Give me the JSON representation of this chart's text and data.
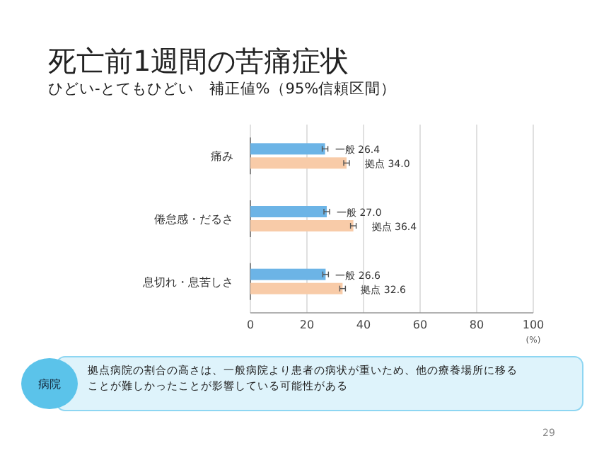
{
  "chart_data": {
    "type": "bar",
    "orientation": "horizontal",
    "title": "死亡前1週間の苦痛症状",
    "subtitle": "ひどい-とてもひどい　補正値%（95%信頼区間）",
    "categories": [
      "痛み",
      "倦怠感・だるさ",
      "息切れ・息苦しさ"
    ],
    "series": [
      {
        "color": "#6cb4e6",
        "values": [
          26.4,
          27.0,
          26.6
        ],
        "errors": [
          1.0,
          1.0,
          1.0
        ],
        "value_labels": [
          "一般 26.4",
          "一般 27.0",
          "一般 26.6"
        ]
      },
      {
        "color": "#f8cba8",
        "values": [
          34.0,
          36.4,
          32.6
        ],
        "errors": [
          1.0,
          1.0,
          1.0
        ],
        "value_labels": [
          "拠点 34.0",
          "拠点 36.4",
          "拠点 32.6"
        ]
      }
    ],
    "xlim": [
      0,
      100
    ],
    "xticks": [
      0,
      20,
      40,
      60,
      80,
      100
    ],
    "xlabel": "(%)",
    "grid": "x",
    "annotations": [
      "病院",
      "拠点病院の割合の高さは、一般病院より患者の病状が重いため、他の療養場所に移ることが難しかったことが影響している可能性がある",
      "29"
    ]
  }
}
